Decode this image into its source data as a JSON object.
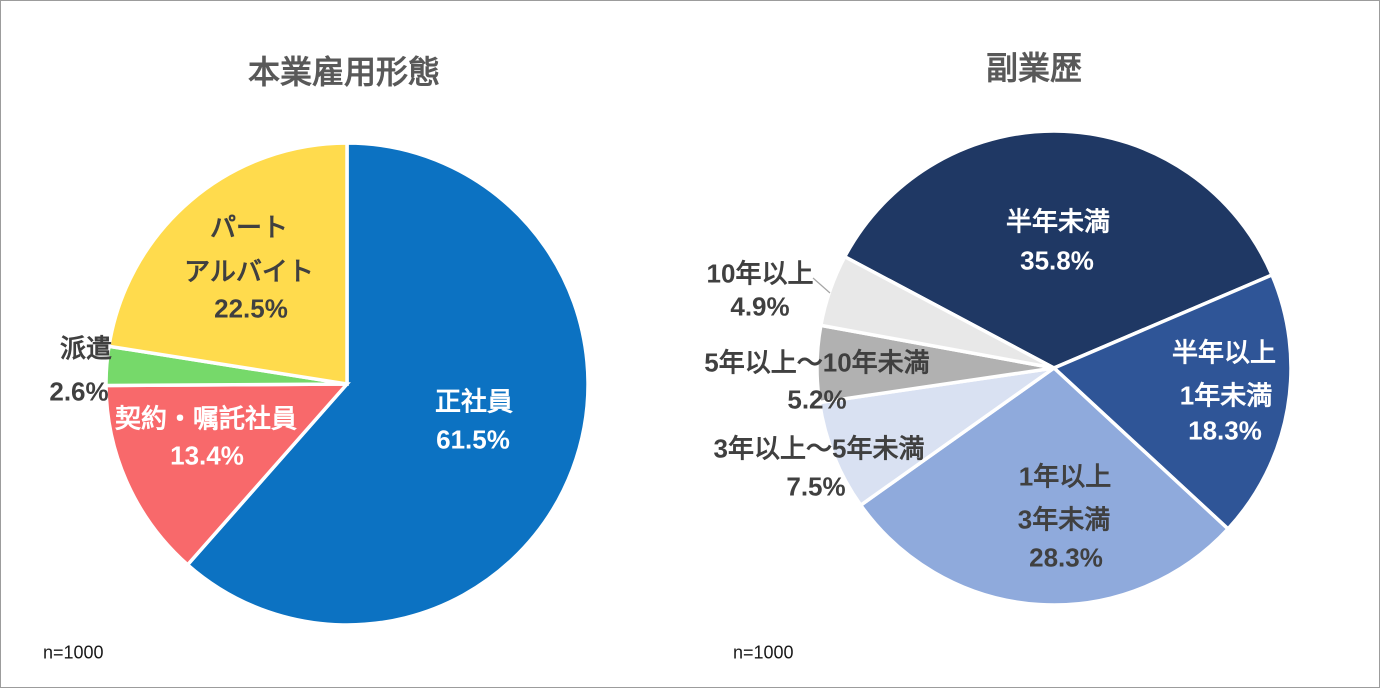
{
  "chart_data": [
    {
      "type": "pie",
      "title": "本業雇用形態",
      "n_label": "n=1000",
      "start_angle": 0,
      "segments": [
        {
          "label": "正社員",
          "label_lines": [
            "正社員"
          ],
          "value": 61.5,
          "pct_label": "61.5%",
          "color": "#0C72C2",
          "label_color": "#FFFFFF"
        },
        {
          "label": "契約・嘱託社員",
          "label_lines": [
            "契約・嘱託社員"
          ],
          "value": 13.4,
          "pct_label": "13.4%",
          "color": "#F8696B",
          "label_color": "#FFFFFF"
        },
        {
          "label": "派遣",
          "label_lines": [
            "派遣"
          ],
          "value": 2.6,
          "pct_label": "2.6%",
          "color": "#76D96A",
          "label_color": "#404040"
        },
        {
          "label": "パート アルバイト",
          "label_lines": [
            "パート",
            "アルバイト"
          ],
          "value": 22.5,
          "pct_label": "22.5%",
          "color": "#FFDB4D",
          "label_color": "#404040"
        }
      ]
    },
    {
      "type": "pie",
      "title": "副業歴",
      "n_label": "n=1000",
      "start_angle": 298,
      "segments": [
        {
          "label": "半年未満",
          "label_lines": [
            "半年未満"
          ],
          "value": 35.8,
          "pct_label": "35.8%",
          "color": "#1F3864",
          "label_color": "#FFFFFF"
        },
        {
          "label": "半年以上1年未満",
          "label_lines": [
            "半年以上",
            "1年未満"
          ],
          "value": 18.3,
          "pct_label": "18.3%",
          "color": "#2F5597",
          "label_color": "#FFFFFF"
        },
        {
          "label": "1年以上3年未満",
          "label_lines": [
            "1年以上",
            "3年未満"
          ],
          "value": 28.3,
          "pct_label": "28.3%",
          "color": "#8FAADC",
          "label_color": "#404040"
        },
        {
          "label": "3年以上～5年未満",
          "label_lines": [
            "3年以上～5年未満"
          ],
          "value": 7.5,
          "pct_label": "7.5%",
          "color": "#D9E1F2",
          "label_color": "#404040"
        },
        {
          "label": "5年以上～10年未満",
          "label_lines": [
            "5年以上～10年未満"
          ],
          "value": 5.2,
          "pct_label": "5.2%",
          "color": "#B1B1B1",
          "label_color": "#404040"
        },
        {
          "label": "10年以上",
          "label_lines": [
            "10年以上"
          ],
          "value": 4.9,
          "pct_label": "4.9%",
          "color": "#E8E8E8",
          "label_color": "#404040"
        }
      ]
    }
  ],
  "leader_line_color": "#A6A6A6"
}
